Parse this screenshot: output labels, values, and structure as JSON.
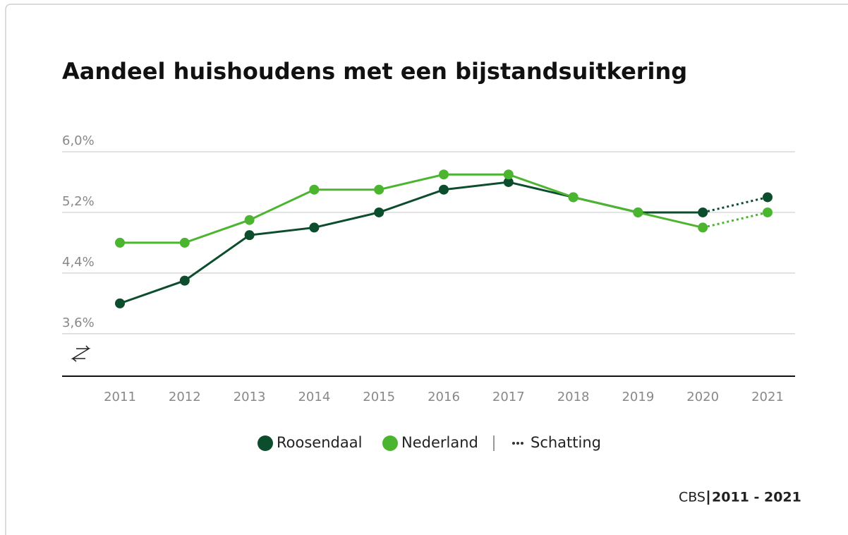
{
  "chart_data": {
    "type": "line",
    "title": "Aandeel huishoudens met een bijstandsuitkering",
    "categories": [
      "2011",
      "2012",
      "2013",
      "2014",
      "2015",
      "2016",
      "2017",
      "2018",
      "2019",
      "2020",
      "2021"
    ],
    "series": [
      {
        "name": "Roosendaal",
        "color": "#0b4d2c",
        "values": [
          4.0,
          4.3,
          4.9,
          5.0,
          5.2,
          5.5,
          5.6,
          5.4,
          5.2,
          5.2,
          5.4
        ]
      },
      {
        "name": "Nederland",
        "color": "#4cb52f",
        "values": [
          4.8,
          4.8,
          5.1,
          5.5,
          5.5,
          5.7,
          5.7,
          5.4,
          5.2,
          5.0,
          5.2
        ]
      }
    ],
    "estimated": [
      false,
      false,
      false,
      false,
      false,
      false,
      false,
      false,
      false,
      false,
      true
    ],
    "estimate_label": "Schatting",
    "ylim": [
      3.04,
      6.0
    ],
    "yticks": [
      {
        "value": 3.6,
        "label": "3,6%"
      },
      {
        "value": 4.4,
        "label": "4,4%"
      },
      {
        "value": 5.2,
        "label": "5,2%"
      },
      {
        "value": 6.0,
        "label": "6,0%"
      }
    ],
    "grid": true,
    "source": "CBS",
    "period": "2011 - 2021"
  }
}
